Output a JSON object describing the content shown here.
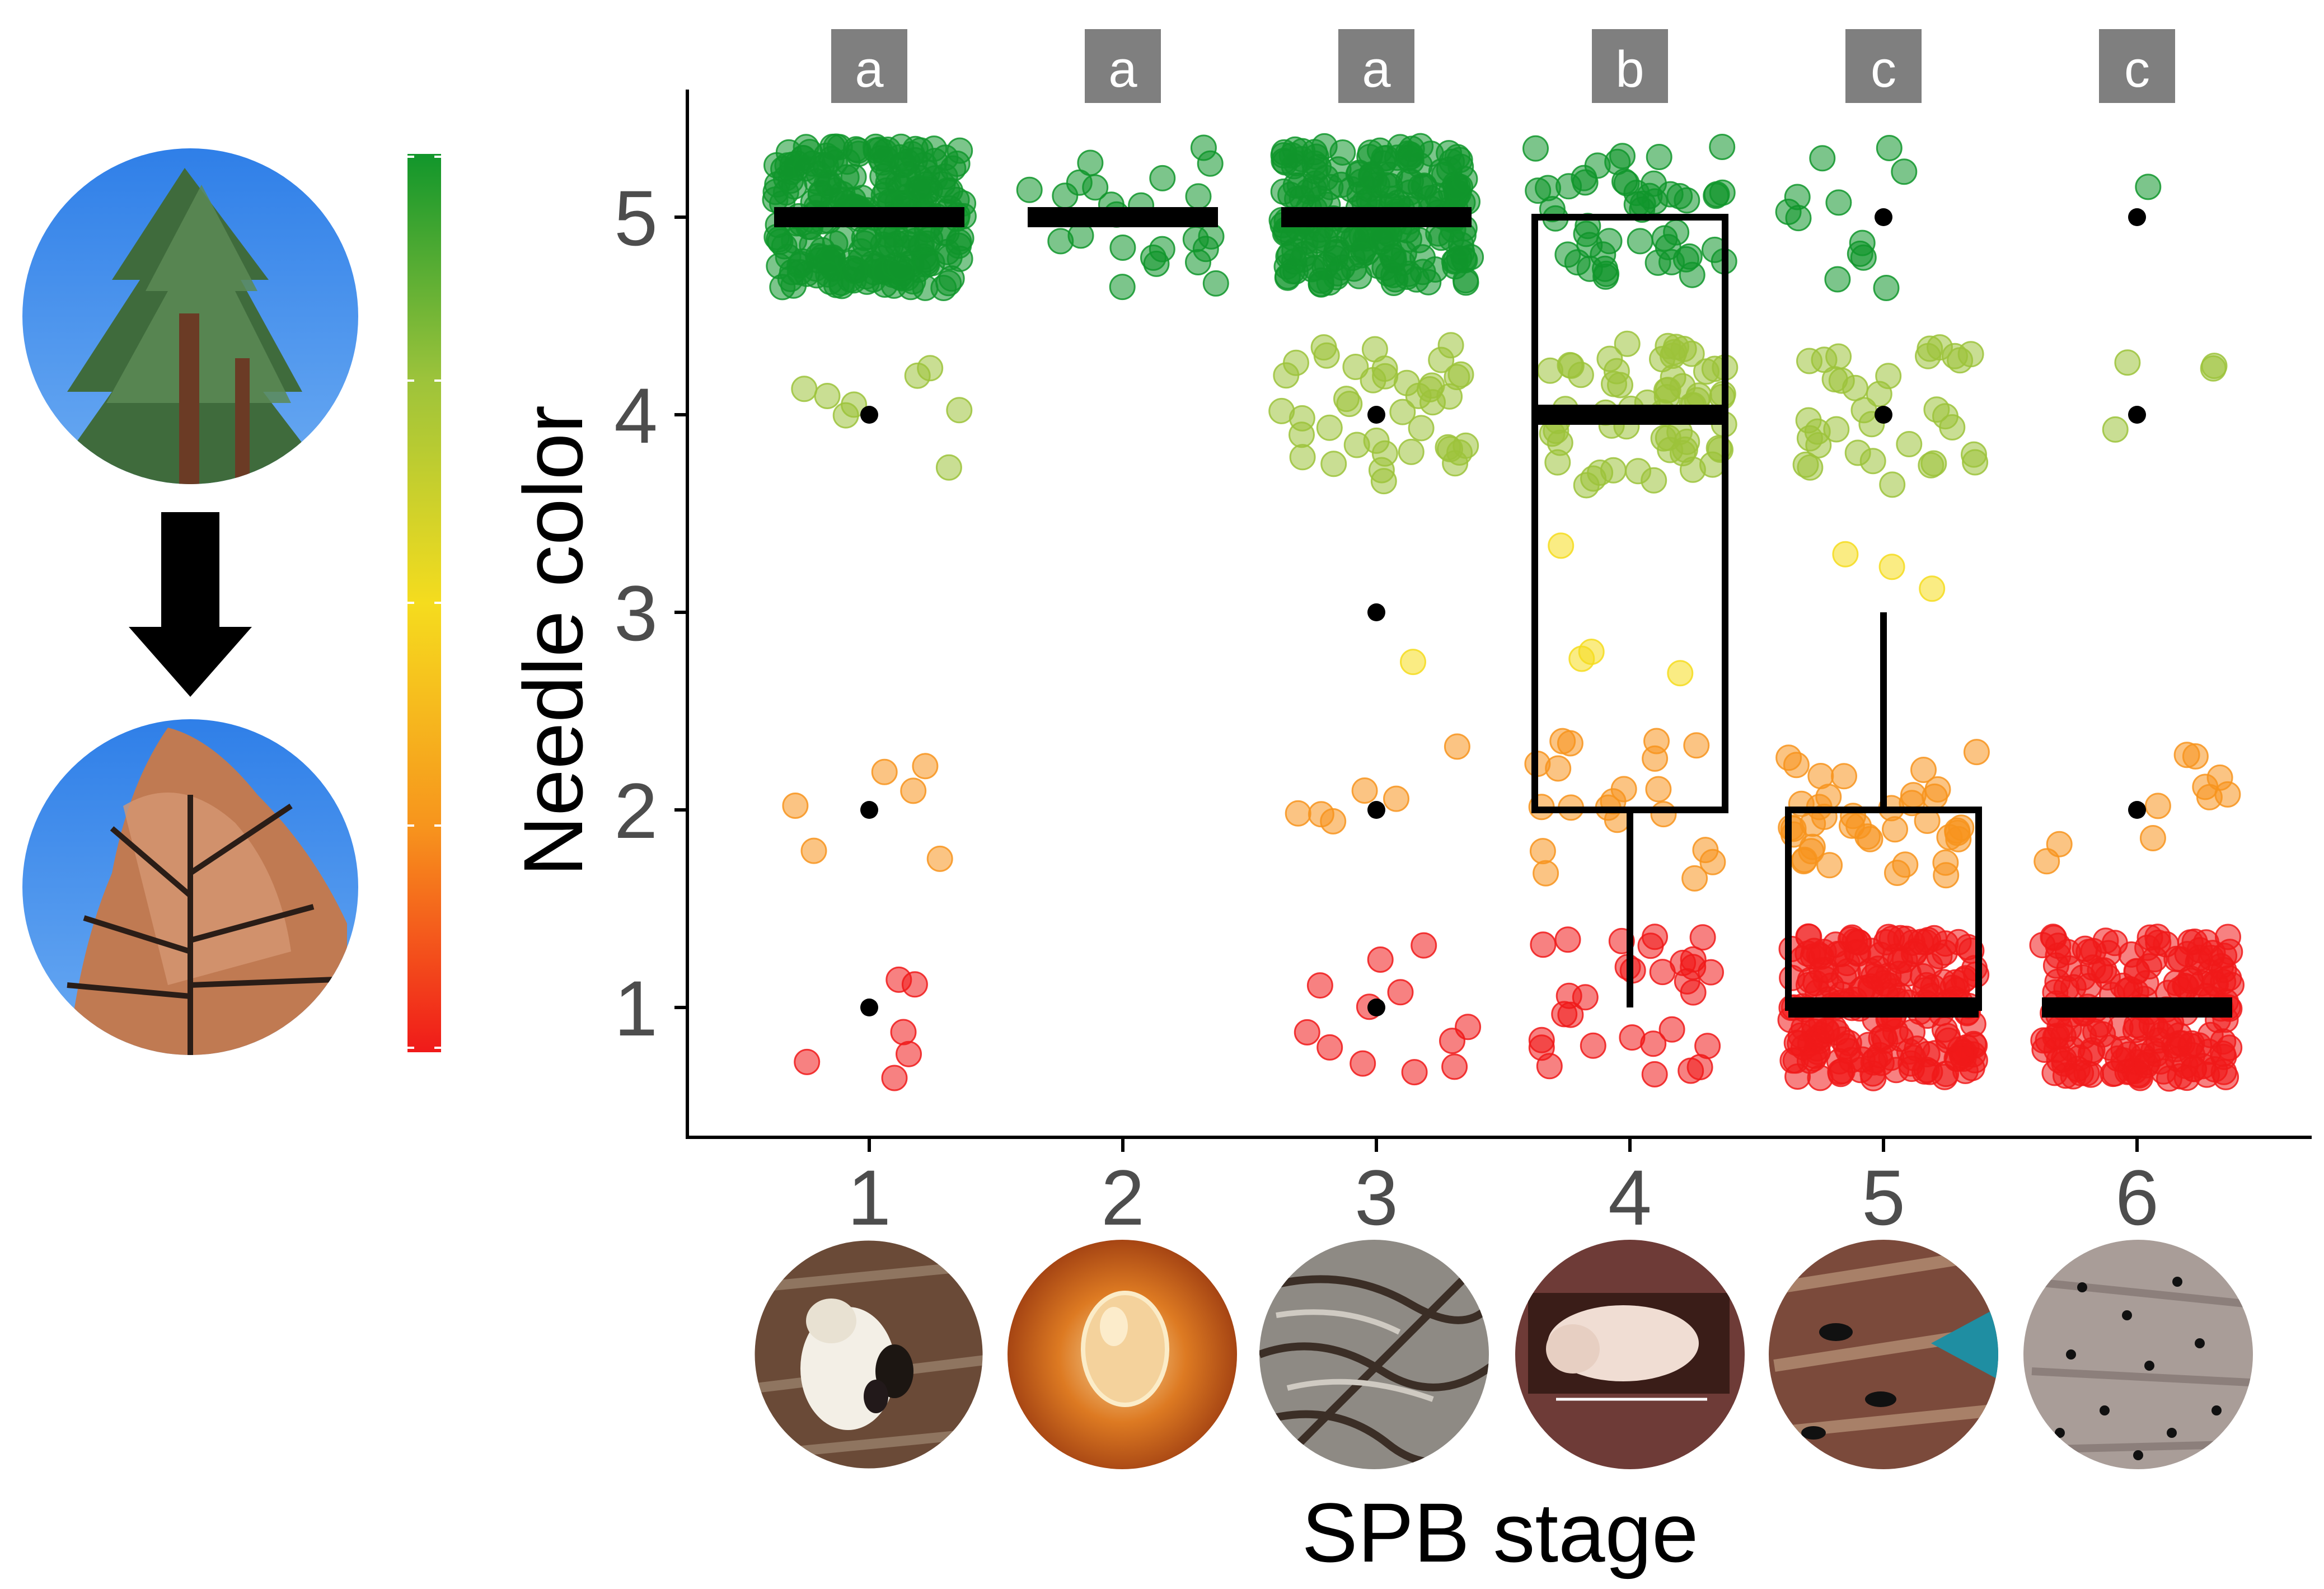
{
  "chart_data": {
    "type": "boxplot-jitter",
    "xlabel": "SPB stage",
    "ylabel": "Needle color",
    "categories": [
      "1",
      "2",
      "3",
      "4",
      "5",
      "6"
    ],
    "y_ticks": [
      "1",
      "2",
      "3",
      "4",
      "5"
    ],
    "ylim": [
      0.55,
      5.55
    ],
    "group_letters": [
      "a",
      "a",
      "a",
      "b",
      "c",
      "c"
    ],
    "color_scale": {
      "1": "#f01a1a",
      "2": "#f7941d",
      "3": "#f5dc1e",
      "4": "#9cc33b",
      "5": "#11962b"
    },
    "point_counts": [
      {
        "stage": "1",
        "counts": {
          "1": 6,
          "2": 6,
          "3": 0,
          "4": 8,
          "5": 260
        }
      },
      {
        "stage": "2",
        "counts": {
          "1": 0,
          "2": 0,
          "3": 0,
          "4": 0,
          "5": 24
        }
      },
      {
        "stage": "3",
        "counts": {
          "1": 12,
          "2": 6,
          "3": 1,
          "4": 40,
          "5": 230
        }
      },
      {
        "stage": "4",
        "counts": {
          "1": 30,
          "2": 20,
          "3": 4,
          "4": 60,
          "5": 50
        }
      },
      {
        "stage": "5",
        "counts": {
          "1": 200,
          "2": 40,
          "3": 3,
          "4": 34,
          "5": 12
        }
      },
      {
        "stage": "6",
        "counts": {
          "1": 180,
          "2": 10,
          "3": 0,
          "4": 4,
          "5": 1
        }
      }
    ],
    "boxes": [
      {
        "stage": "1",
        "q1": 5,
        "median": 5,
        "q3": 5,
        "whisker_low": 5,
        "whisker_high": 5,
        "outliers": [
          4,
          2,
          1
        ]
      },
      {
        "stage": "2",
        "q1": 5,
        "median": 5,
        "q3": 5,
        "whisker_low": 5,
        "whisker_high": 5,
        "outliers": []
      },
      {
        "stage": "3",
        "q1": 5,
        "median": 5,
        "q3": 5,
        "whisker_low": 5,
        "whisker_high": 5,
        "outliers": [
          4,
          3,
          2,
          1
        ]
      },
      {
        "stage": "4",
        "q1": 2,
        "median": 4,
        "q3": 5,
        "whisker_low": 1,
        "whisker_high": 5,
        "outliers": []
      },
      {
        "stage": "5",
        "q1": 1,
        "median": 1,
        "q3": 2,
        "whisker_low": 1,
        "whisker_high": 3,
        "outliers": [
          5,
          4
        ]
      },
      {
        "stage": "6",
        "q1": 1,
        "median": 1,
        "q3": 1,
        "whisker_low": 1,
        "whisker_high": 1,
        "outliers": [
          5,
          4,
          2
        ]
      }
    ]
  },
  "images": {
    "healthy_tree": "green-pine-crown",
    "dead_tree": "red-brown-pine-crown",
    "transition_icon": "arrow-down-icon",
    "stage_photos": [
      "adult-beetles-resin",
      "egg-in-gallery",
      "larval-galleries",
      "pupa-in-cell",
      "emergence-holes-marker",
      "exit-holes-bark"
    ]
  }
}
